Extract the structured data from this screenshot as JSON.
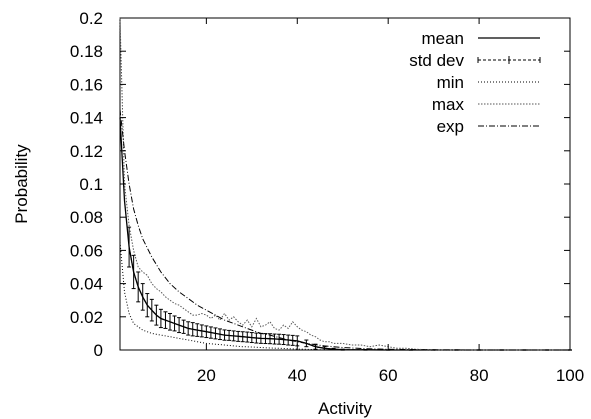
{
  "chart_data": {
    "type": "line",
    "title": "",
    "xlabel": "Activity",
    "ylabel": "Probability",
    "xlim": [
      1,
      100
    ],
    "ylim": [
      0,
      0.2
    ],
    "grid": false,
    "legend_position": "top-right",
    "x_ticks": [
      20,
      40,
      60,
      80,
      100
    ],
    "x_tick_labels": [
      "20",
      "40",
      "60",
      "80",
      "100"
    ],
    "y_ticks": [
      0,
      0.02,
      0.04,
      0.06,
      0.08,
      0.1,
      0.12,
      0.14,
      0.16,
      0.18,
      0.2
    ],
    "y_tick_labels": [
      "0",
      "0.02",
      "0.04",
      "0.06",
      "0.08",
      "0.1",
      "0.12",
      "0.14",
      "0.16",
      "0.18",
      "0.2"
    ],
    "series": [
      {
        "name": "mean",
        "style": "solid",
        "x": [
          1,
          2,
          3,
          4,
          5,
          6,
          7,
          8,
          9,
          10,
          12,
          14,
          16,
          18,
          20,
          22,
          24,
          26,
          28,
          30,
          32,
          34,
          36,
          38,
          40,
          42,
          44,
          46,
          48,
          50,
          55,
          60,
          70,
          80,
          90,
          100
        ],
        "y": [
          0.14,
          0.09,
          0.062,
          0.047,
          0.038,
          0.032,
          0.027,
          0.024,
          0.021,
          0.019,
          0.017,
          0.015,
          0.013,
          0.012,
          0.011,
          0.01,
          0.009,
          0.0085,
          0.008,
          0.0075,
          0.007,
          0.0068,
          0.0065,
          0.006,
          0.0055,
          0.004,
          0.002,
          0.001,
          0.0005,
          0.0002,
          0.0001,
          0,
          0,
          0,
          0,
          0
        ]
      },
      {
        "name": "std dev",
        "style": "errorbars",
        "x": [
          3,
          4,
          5,
          6,
          7,
          8,
          9,
          10,
          11,
          12,
          13,
          14,
          15,
          16,
          17,
          18,
          19,
          20,
          21,
          22,
          23,
          24,
          25,
          26,
          27,
          28,
          29,
          30,
          31,
          32,
          33,
          34,
          35,
          36,
          37,
          38,
          39,
          40,
          42,
          44,
          46,
          48,
          50,
          55,
          60,
          65,
          70,
          75,
          80,
          85,
          90,
          95,
          100
        ],
        "y": [
          0.062,
          0.047,
          0.038,
          0.032,
          0.027,
          0.024,
          0.021,
          0.019,
          0.018,
          0.017,
          0.016,
          0.015,
          0.014,
          0.013,
          0.0125,
          0.012,
          0.0115,
          0.011,
          0.0105,
          0.01,
          0.0095,
          0.009,
          0.0088,
          0.0085,
          0.0082,
          0.008,
          0.0078,
          0.0075,
          0.0072,
          0.007,
          0.0069,
          0.0068,
          0.0066,
          0.0065,
          0.0063,
          0.006,
          0.0058,
          0.0055,
          0.004,
          0.002,
          0.001,
          0.0005,
          0.0002,
          0.0001,
          0,
          0,
          0,
          0,
          0,
          0,
          0,
          0,
          0
        ],
        "error": [
          0.012,
          0.01,
          0.009,
          0.008,
          0.007,
          0.0065,
          0.006,
          0.0055,
          0.005,
          0.005,
          0.0045,
          0.0045,
          0.004,
          0.004,
          0.004,
          0.0038,
          0.0036,
          0.0035,
          0.0034,
          0.0033,
          0.0032,
          0.0031,
          0.003,
          0.003,
          0.003,
          0.003,
          0.003,
          0.003,
          0.003,
          0.003,
          0.003,
          0.003,
          0.003,
          0.003,
          0.003,
          0.003,
          0.003,
          0.003,
          0.002,
          0.0015,
          0.001,
          0.0005,
          0.0003,
          0.0002,
          0.0001,
          0.0001,
          0.0001,
          0.0001,
          0.0001,
          0.0001,
          0.0001,
          0.0001,
          0.0001
        ]
      },
      {
        "name": "min",
        "style": "dotted-fine",
        "x": [
          1,
          2,
          3,
          4,
          5,
          6,
          8,
          10,
          12,
          14,
          16,
          18,
          20,
          22,
          24,
          26,
          28,
          30,
          32,
          34,
          36,
          38,
          40,
          42,
          44,
          46,
          50,
          60,
          70,
          80,
          90,
          100
        ],
        "y": [
          0.065,
          0.035,
          0.022,
          0.016,
          0.014,
          0.012,
          0.01,
          0.009,
          0.008,
          0.007,
          0.006,
          0.005,
          0.004,
          0.0035,
          0.003,
          0.0025,
          0.002,
          0.0018,
          0.0015,
          0.0012,
          0.001,
          0.0008,
          0.0006,
          0.0004,
          0.0002,
          0.0001,
          0,
          0,
          0,
          0,
          0,
          0
        ]
      },
      {
        "name": "max",
        "style": "dotted",
        "x": [
          1,
          2,
          3,
          4,
          5,
          6,
          7,
          8,
          9,
          10,
          11,
          12,
          13,
          14,
          15,
          16,
          17,
          18,
          19,
          20,
          21,
          22,
          23,
          24,
          25,
          26,
          27,
          28,
          29,
          30,
          31,
          32,
          33,
          34,
          35,
          36,
          37,
          38,
          39,
          40,
          41,
          42,
          43,
          44,
          45,
          46,
          47,
          48,
          50,
          52,
          54,
          56,
          58,
          60,
          62,
          64,
          66,
          70,
          80,
          90,
          100
        ],
        "y": [
          0.2,
          0.1,
          0.075,
          0.06,
          0.05,
          0.047,
          0.045,
          0.04,
          0.037,
          0.035,
          0.032,
          0.03,
          0.028,
          0.027,
          0.025,
          0.023,
          0.021,
          0.021,
          0.022,
          0.021,
          0.019,
          0.021,
          0.018,
          0.022,
          0.018,
          0.02,
          0.017,
          0.015,
          0.018,
          0.014,
          0.019,
          0.014,
          0.015,
          0.017,
          0.013,
          0.012,
          0.015,
          0.013,
          0.017,
          0.014,
          0.012,
          0.011,
          0.009,
          0.008,
          0.006,
          0.005,
          0.005,
          0.004,
          0.004,
          0.003,
          0.003,
          0.002,
          0.003,
          0.002,
          0.001,
          0.001,
          0.0005,
          0,
          0,
          0,
          0
        ]
      },
      {
        "name": "exp",
        "style": "dash-dot",
        "x": [
          1,
          2,
          3,
          4,
          5,
          6,
          8,
          10,
          12,
          14,
          16,
          18,
          20,
          22,
          24,
          26,
          28,
          30,
          32,
          34,
          36,
          38,
          40,
          42,
          44,
          46,
          48,
          50,
          55,
          60,
          70,
          80,
          90,
          100
        ],
        "y": [
          0.145,
          0.12,
          0.1,
          0.085,
          0.075,
          0.067,
          0.056,
          0.047,
          0.04,
          0.035,
          0.031,
          0.027,
          0.024,
          0.021,
          0.018,
          0.016,
          0.014,
          0.012,
          0.01,
          0.009,
          0.0075,
          0.006,
          0.005,
          0.004,
          0.0032,
          0.0025,
          0.002,
          0.0015,
          0.0008,
          0.0004,
          0.0001,
          0,
          0,
          0
        ]
      }
    ]
  }
}
